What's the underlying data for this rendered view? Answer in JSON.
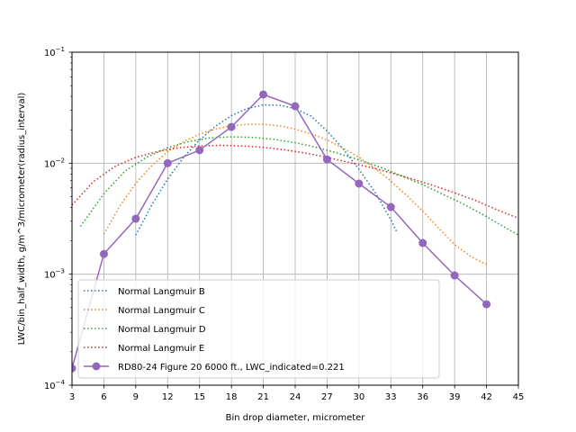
{
  "chart_data": {
    "type": "line",
    "title": "",
    "xlabel": "Bin drop diameter, micrometer",
    "ylabel": "LWC/bin_half_width, g/m^3/micrometer(radius_interval)",
    "xlim": [
      3,
      45
    ],
    "ylim": [
      0.0001,
      0.1
    ],
    "yscale": "log",
    "grid": true,
    "legend_position": "lower left",
    "x_ticks": [
      "3",
      "6",
      "9",
      "12",
      "15",
      "18",
      "21",
      "24",
      "27",
      "30",
      "33",
      "36",
      "39",
      "42",
      "45"
    ],
    "y_ticks": [
      {
        "base": "10",
        "exp": "−1",
        "value": 0.1
      },
      {
        "base": "10",
        "exp": "−2",
        "value": 0.01
      },
      {
        "base": "10",
        "exp": "−3",
        "value": 0.001
      },
      {
        "base": "10",
        "exp": "−4",
        "value": 0.0001
      }
    ],
    "series": [
      {
        "name": "Normal Langmuir B",
        "color": "#1f77b4",
        "style": "dotted",
        "x": [
          9,
          10.5,
          12,
          13.5,
          15,
          16.5,
          18,
          19.5,
          21,
          22.5,
          24,
          25.5,
          27,
          28.5,
          30,
          31.5,
          33,
          33.6
        ],
        "values": [
          0.00225,
          0.0042,
          0.0072,
          0.0113,
          0.0162,
          0.0215,
          0.0268,
          0.0312,
          0.0335,
          0.0333,
          0.031,
          0.0265,
          0.0195,
          0.0135,
          0.0088,
          0.0055,
          0.0031,
          0.00235
        ]
      },
      {
        "name": "Normal Langmuir C",
        "color": "#ff7f0e",
        "style": "dotted",
        "x": [
          6,
          7.5,
          9,
          10.5,
          12,
          13.5,
          15,
          16.5,
          18,
          19.5,
          21,
          22.5,
          24,
          25.5,
          27,
          28.5,
          30,
          31.5,
          33,
          34.5,
          36,
          37.5,
          39,
          40.5,
          42
        ],
        "values": [
          0.0023,
          0.0041,
          0.0066,
          0.0095,
          0.0127,
          0.0157,
          0.0183,
          0.0203,
          0.0217,
          0.0224,
          0.0224,
          0.0217,
          0.0203,
          0.0184,
          0.0162,
          0.0137,
          0.0113,
          0.009,
          0.0069,
          0.0051,
          0.0037,
          0.0026,
          0.00185,
          0.00145,
          0.00122
        ]
      },
      {
        "name": "Normal Langmuir D",
        "color": "#2ca02c",
        "style": "dotted",
        "x": [
          3.8,
          6,
          8,
          10,
          12,
          14,
          16,
          18,
          20,
          22,
          24,
          26,
          28,
          30,
          32,
          34,
          36,
          38,
          40,
          42,
          45
        ],
        "values": [
          0.0027,
          0.0053,
          0.0085,
          0.0113,
          0.0138,
          0.0157,
          0.0169,
          0.0173,
          0.0171,
          0.0164,
          0.0153,
          0.0139,
          0.0123,
          0.0107,
          0.0092,
          0.0077,
          0.0064,
          0.0052,
          0.0042,
          0.0033,
          0.00225
        ]
      },
      {
        "name": "Normal Langmuir E",
        "color": "#d62728",
        "style": "dotted",
        "x": [
          3,
          5,
          7,
          9,
          11,
          13,
          15,
          17,
          19,
          21,
          23,
          25,
          27,
          29,
          31,
          33,
          35,
          37,
          39,
          41,
          43,
          45
        ],
        "values": [
          0.0042,
          0.0068,
          0.0093,
          0.0113,
          0.0127,
          0.0138,
          0.0143,
          0.0145,
          0.0143,
          0.0139,
          0.0132,
          0.0123,
          0.0113,
          0.0102,
          0.0092,
          0.0082,
          0.0072,
          0.0063,
          0.0054,
          0.0046,
          0.0038,
          0.0032
        ]
      },
      {
        "name": "RD80-24 Figure 20 6000 ft., LWC_indicated=0.221",
        "color": "#9467bd",
        "style": "solid-marker",
        "x": [
          3,
          6,
          9,
          12,
          15,
          18,
          21,
          24,
          27,
          30,
          33,
          36,
          39,
          42
        ],
        "values": [
          0.000142,
          0.00152,
          0.00316,
          0.01,
          0.0131,
          0.0212,
          0.0416,
          0.0326,
          0.0108,
          0.00655,
          0.00403,
          0.00191,
          0.000975,
          0.000536
        ]
      }
    ]
  }
}
